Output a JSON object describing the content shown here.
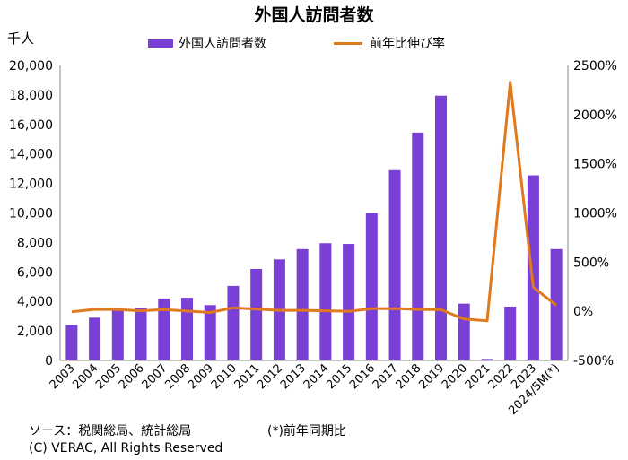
{
  "chart_data": {
    "type": "bar",
    "title": "外国人訪問者数",
    "y1_unit": "千人",
    "categories": [
      "2003",
      "2004",
      "2005",
      "2006",
      "2007",
      "2008",
      "2009",
      "2010",
      "2011",
      "2012",
      "2013",
      "2014",
      "2015",
      "2016",
      "2017",
      "2018",
      "2019",
      "2020",
      "2021",
      "2022",
      "2023",
      "2024/5M(*)"
    ],
    "series": [
      {
        "name": "外国人訪問者数",
        "type": "bar",
        "axis": "left",
        "color": "#7a3fd4",
        "values": [
          2400,
          2900,
          3400,
          3550,
          4200,
          4250,
          3750,
          5050,
          6200,
          6850,
          7550,
          7950,
          7900,
          10000,
          12900,
          15450,
          17950,
          3850,
          100,
          3650,
          12550,
          7550
        ]
      },
      {
        "name": "前年比伸び率",
        "type": "line",
        "axis": "right",
        "color": "#e07a1f",
        "values": [
          -5,
          20,
          18,
          5,
          18,
          2,
          -12,
          35,
          22,
          10,
          10,
          5,
          0,
          26,
          28,
          19,
          16,
          -79,
          -97,
          2330,
          245,
          60
        ]
      }
    ],
    "y1_ticks": [
      "0",
      "2,000",
      "4,000",
      "6,000",
      "8,000",
      "10,000",
      "12,000",
      "14,000",
      "16,000",
      "18,000",
      "20,000"
    ],
    "y1_lim": [
      0,
      20000
    ],
    "y2_ticks": [
      "-500%",
      "0%",
      "500%",
      "1000%",
      "1500%",
      "2000%",
      "2500%"
    ],
    "y2_lim": [
      -500,
      2500
    ],
    "legend_position": "top",
    "grid": false
  },
  "notes": {
    "source": "ソース：税関総局、統計総局",
    "footnote": "(*)前年同期比",
    "copyright": "(C) VERAC, All Rights Reserved"
  }
}
